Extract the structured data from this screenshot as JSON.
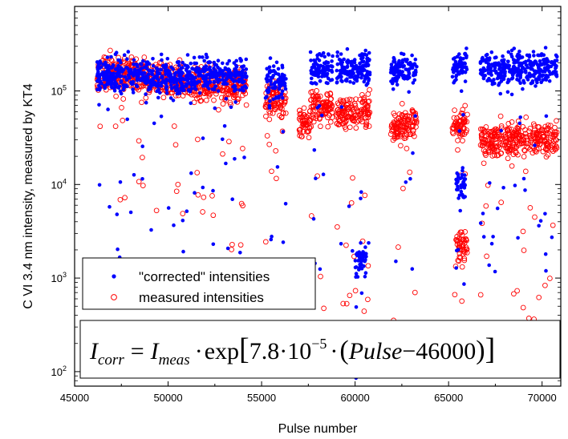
{
  "chart_data": {
    "type": "scatter",
    "title": "",
    "xlabel": "Pulse number",
    "ylabel": "C VI 3.4 nm intensity, measured by KT4",
    "xlim": [
      45000,
      71000
    ],
    "ylim": [
      70,
      800000
    ],
    "y_scale": "log",
    "x_ticks": [
      45000,
      50000,
      55000,
      60000,
      65000,
      70000
    ],
    "x_tick_labels": [
      "45000",
      "50000",
      "55000",
      "60000",
      "65000",
      "70000"
    ],
    "y_ticks": [
      100,
      1000,
      10000,
      100000
    ],
    "y_tick_labels": [
      {
        "base": "10",
        "exp": "2"
      },
      {
        "base": "10",
        "exp": "3"
      },
      {
        "base": "10",
        "exp": "4"
      },
      {
        "base": "10",
        "exp": "5"
      }
    ],
    "legend_position": "lower-left",
    "series": [
      {
        "name": "\"corrected\" intensities",
        "marker": "filled-circle",
        "color": "#0000ff",
        "clusters": [
          {
            "x": [
              46200,
              48800
            ],
            "y": 150000
          },
          {
            "x": [
              48800,
              51000
            ],
            "y": 140000
          },
          {
            "x": [
              51000,
              54200
            ],
            "y": 145000
          },
          {
            "x": [
              55200,
              56300
            ],
            "y": 130000
          },
          {
            "x": [
              57600,
              58800
            ],
            "y": 170000
          },
          {
            "x": [
              59000,
              60800
            ],
            "y": 175000
          },
          {
            "x": [
              61900,
              63300
            ],
            "y": 170000
          },
          {
            "x": [
              65200,
              66000
            ],
            "y": 185000
          },
          {
            "x": [
              66700,
              70800
            ],
            "y": 175000
          },
          {
            "x": [
              65400,
              65900
            ],
            "y": 10000
          },
          {
            "x": [
              60000,
              60600
            ],
            "y": 1500
          }
        ]
      },
      {
        "name": "measured intensities",
        "marker": "open-circle",
        "color": "#ff0000",
        "clusters": [
          {
            "x": [
              46200,
              48800
            ],
            "y": 150000
          },
          {
            "x": [
              48800,
              51000
            ],
            "y": 130000
          },
          {
            "x": [
              51000,
              54200
            ],
            "y": 115000
          },
          {
            "x": [
              55200,
              56300
            ],
            "y": 80000
          },
          {
            "x": [
              57000,
              57600
            ],
            "y": 45000
          },
          {
            "x": [
              57600,
              58800
            ],
            "y": 70000
          },
          {
            "x": [
              59000,
              60800
            ],
            "y": 60000
          },
          {
            "x": [
              61900,
              63300
            ],
            "y": 45000
          },
          {
            "x": [
              65200,
              66000
            ],
            "y": 42000
          },
          {
            "x": [
              65400,
              66000
            ],
            "y": 2200
          },
          {
            "x": [
              66700,
              70800
            ],
            "y": 30000
          }
        ]
      }
    ],
    "annotation": {
      "lhs": "I",
      "lhs_sub": "corr",
      "eq": "=",
      "rhs_I": "I",
      "rhs_sub": "meas",
      "dot1": "·",
      "fn": "exp",
      "lbr": "[",
      "coef": "7.8",
      "dot2": "·",
      "base": "10",
      "exp": "−5",
      "dot3": "·",
      "lp": "(",
      "pulse": "Pulse",
      "minus": "−",
      "const": "46000",
      "rp": ")",
      "rbr": "]"
    }
  }
}
